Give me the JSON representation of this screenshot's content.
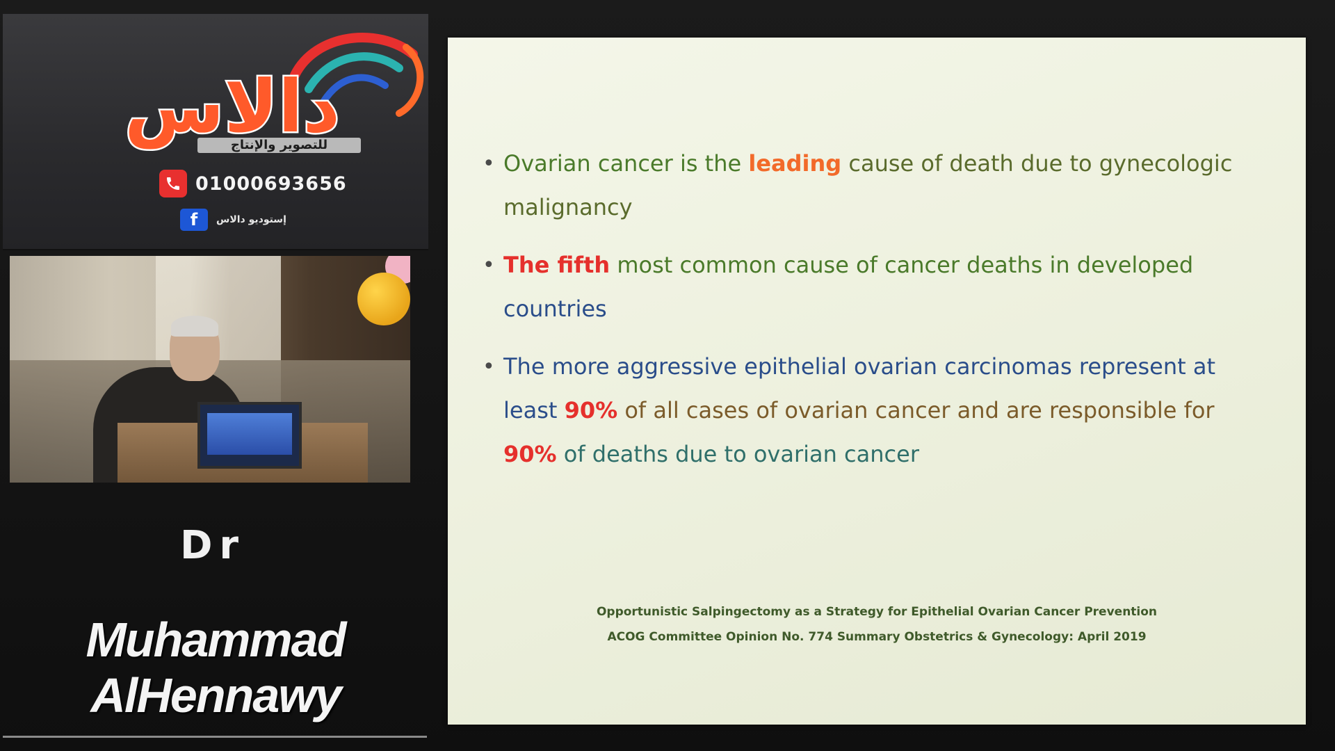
{
  "colors": {
    "accent_orange": "#f26a2a",
    "accent_red": "#e5302c",
    "text_green": "#4a7a2a",
    "text_blue": "#2a4d8a",
    "slide_bg": "#eef1df",
    "panel_bg": "#2f2f32"
  },
  "brand": {
    "logo_text": "دالاس",
    "tagline": "للتصوير والإنتاج",
    "phone": "01000693656",
    "social_name": "إستوديو دالاس",
    "icons": [
      "phone-icon",
      "facebook-icon"
    ]
  },
  "presenter": {
    "title": "Dr",
    "name": "Muhammad AlHennawy"
  },
  "slide": {
    "bullets": [
      {
        "segments": [
          {
            "text": "Ovarian cancer is the ",
            "tone": "green"
          },
          {
            "text": "leading",
            "tone": "orange"
          },
          {
            "text": " cause of death due to gynecologic malignancy",
            "tone": "olive"
          }
        ]
      },
      {
        "segments": [
          {
            "text": "The fifth",
            "tone": "red"
          },
          {
            "text": " most common cause of cancer deaths in developed ",
            "tone": "green"
          },
          {
            "text": "countries",
            "tone": "blue"
          }
        ]
      },
      {
        "segments": [
          {
            "text": "The more aggressive epithelial ovarian carcinomas represent at least ",
            "tone": "blue"
          },
          {
            "text": "90%",
            "tone": "red"
          },
          {
            "text": " of all cases of ovarian cancer and are responsible for ",
            "tone": "brown"
          },
          {
            "text": "90%",
            "tone": "red"
          },
          {
            "text": " of deaths due to ovarian cancer",
            "tone": "teal"
          }
        ]
      }
    ],
    "citation": {
      "line1": "Opportunistic Salpingectomy as a Strategy for Epithelial Ovarian Cancer Prevention",
      "line2": "ACOG Committee Opinion No. 774 Summary Obstetrics & Gynecology: April 2019"
    }
  }
}
